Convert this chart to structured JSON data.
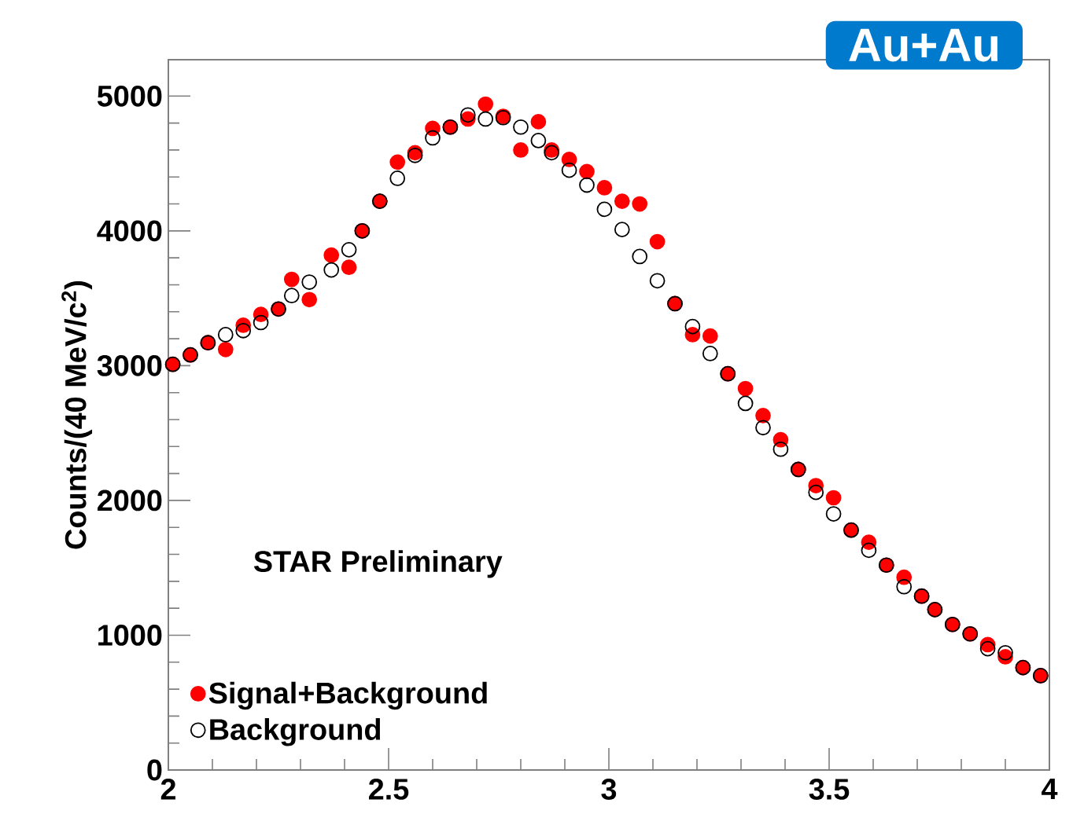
{
  "chart_data": {
    "type": "scatter",
    "ylabel": "Counts/(40 MeV/c$^{2}$)",
    "annotations": [
      "Au+Au",
      "STAR Preliminary"
    ],
    "x": [
      2.01,
      2.05,
      2.09,
      2.13,
      2.17,
      2.21,
      2.25,
      2.28,
      2.32,
      2.37,
      2.41,
      2.44,
      2.48,
      2.52,
      2.56,
      2.6,
      2.64,
      2.68,
      2.72,
      2.76,
      2.8,
      2.84,
      2.87,
      2.91,
      2.95,
      2.99,
      3.03,
      3.07,
      3.11,
      3.15,
      3.19,
      3.23,
      3.27,
      3.31,
      3.35,
      3.39,
      3.43,
      3.47,
      3.51,
      3.55,
      3.59,
      3.63,
      3.67,
      3.71,
      3.74,
      3.78,
      3.82,
      3.86,
      3.9,
      3.94,
      3.98
    ],
    "series": [
      {
        "name": "Signal+Background",
        "color": "#ff0000",
        "values": [
          3010,
          3080,
          3170,
          3120,
          3300,
          3380,
          3420,
          3640,
          3490,
          3820,
          3730,
          4000,
          4220,
          4510,
          4580,
          4760,
          4770,
          4830,
          4940,
          4850,
          4600,
          4810,
          4600,
          4530,
          4440,
          4320,
          4220,
          4200,
          3920,
          3460,
          3230,
          3220,
          2940,
          2830,
          2630,
          2450,
          2230,
          2110,
          2020,
          1780,
          1690,
          1520,
          1430,
          1290,
          1190,
          1080,
          1010,
          930,
          840,
          760,
          700
        ]
      },
      {
        "name": "Background",
        "color": "#000000",
        "values": [
          3010,
          3080,
          3170,
          3230,
          3260,
          3320,
          3420,
          3520,
          3620,
          3710,
          3860,
          4000,
          4220,
          4390,
          4560,
          4690,
          4770,
          4860,
          4830,
          4840,
          4770,
          4670,
          4580,
          4450,
          4340,
          4160,
          4010,
          3810,
          3630,
          3460,
          3290,
          3090,
          2940,
          2720,
          2540,
          2380,
          2230,
          2060,
          1900,
          1780,
          1630,
          1520,
          1360,
          1290,
          1190,
          1080,
          1010,
          900,
          870,
          760,
          700
        ]
      }
    ],
    "xlim": [
      2,
      4
    ],
    "ylim": [
      0,
      5270
    ],
    "xticks": [
      2,
      2.5,
      3,
      3.5,
      4
    ],
    "yticks": [
      0,
      1000,
      2000,
      3000,
      4000,
      5000
    ],
    "marker": "circle",
    "grid": false,
    "legend": "bottom left"
  }
}
